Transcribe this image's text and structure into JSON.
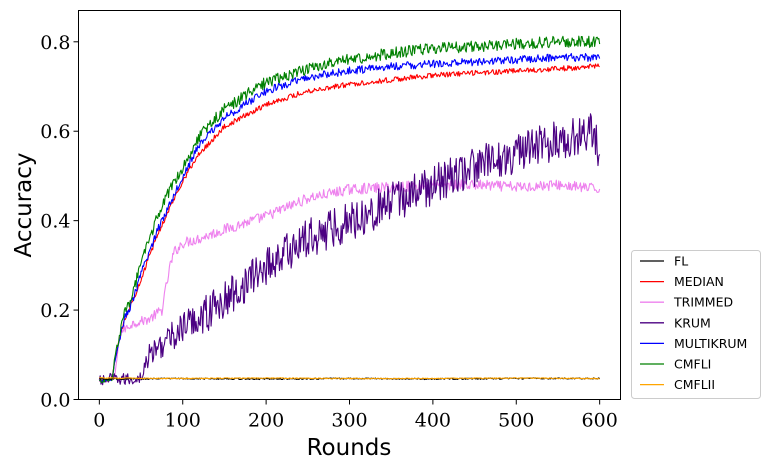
{
  "chart_data": {
    "type": "line",
    "title": "",
    "xlabel": "Rounds",
    "ylabel": "Accuracy",
    "xlim": [
      -25,
      625
    ],
    "ylim": [
      0.0,
      0.87
    ],
    "x_ticks": [
      0,
      100,
      200,
      300,
      400,
      500,
      600
    ],
    "x_tick_labels": [
      "0",
      "100",
      "200",
      "300",
      "400",
      "500",
      "600"
    ],
    "y_ticks": [
      0.0,
      0.2,
      0.4,
      0.6,
      0.8
    ],
    "y_tick_labels": [
      "0.0",
      "0.2",
      "0.4",
      "0.6",
      "0.8"
    ],
    "grid": false,
    "legend_placement": "outside-right-bottom",
    "series": [
      {
        "name": "FL",
        "color": "#000000",
        "x": [
          0,
          100,
          200,
          300,
          400,
          500,
          600
        ],
        "y": [
          0.046,
          0.047,
          0.046,
          0.047,
          0.046,
          0.047,
          0.047
        ]
      },
      {
        "name": "MEDIAN",
        "color": "#ff0000",
        "x": [
          0,
          15,
          20,
          30,
          40,
          50,
          60,
          70,
          80,
          90,
          100,
          120,
          150,
          200,
          250,
          300,
          350,
          400,
          450,
          500,
          550,
          600
        ],
        "y": [
          0.04,
          0.045,
          0.1,
          0.18,
          0.22,
          0.27,
          0.32,
          0.37,
          0.41,
          0.45,
          0.49,
          0.55,
          0.61,
          0.66,
          0.69,
          0.705,
          0.715,
          0.725,
          0.73,
          0.735,
          0.74,
          0.745
        ]
      },
      {
        "name": "TRIMMED",
        "color": "#ee82ee",
        "x": [
          0,
          18,
          25,
          40,
          60,
          75,
          80,
          85,
          90,
          100,
          120,
          150,
          200,
          250,
          300,
          350,
          400,
          450,
          500,
          550,
          600
        ],
        "y": [
          0.04,
          0.045,
          0.15,
          0.17,
          0.18,
          0.2,
          0.25,
          0.3,
          0.33,
          0.35,
          0.36,
          0.38,
          0.41,
          0.45,
          0.47,
          0.475,
          0.48,
          0.48,
          0.475,
          0.48,
          0.47
        ]
      },
      {
        "name": "KRUM",
        "color": "#4b0082",
        "x": [
          0,
          10,
          40,
          50,
          60,
          80,
          100,
          150,
          200,
          250,
          300,
          350,
          400,
          450,
          500,
          550,
          590,
          600
        ],
        "y": [
          0.04,
          0.045,
          0.045,
          0.05,
          0.1,
          0.13,
          0.16,
          0.22,
          0.3,
          0.36,
          0.4,
          0.44,
          0.48,
          0.52,
          0.55,
          0.58,
          0.6,
          0.55
        ]
      },
      {
        "name": "MULTIKRUM",
        "color": "#0000ff",
        "x": [
          0,
          15,
          20,
          30,
          40,
          50,
          60,
          70,
          80,
          90,
          100,
          120,
          150,
          200,
          250,
          300,
          350,
          400,
          450,
          500,
          550,
          600
        ],
        "y": [
          0.04,
          0.045,
          0.1,
          0.18,
          0.22,
          0.28,
          0.33,
          0.38,
          0.42,
          0.46,
          0.5,
          0.57,
          0.63,
          0.69,
          0.72,
          0.735,
          0.745,
          0.75,
          0.755,
          0.76,
          0.765,
          0.765
        ]
      },
      {
        "name": "CMFLI",
        "color": "#008000",
        "x": [
          0,
          15,
          20,
          30,
          40,
          50,
          60,
          70,
          80,
          90,
          100,
          120,
          150,
          200,
          250,
          300,
          350,
          400,
          450,
          500,
          550,
          600
        ],
        "y": [
          0.04,
          0.045,
          0.11,
          0.19,
          0.24,
          0.3,
          0.36,
          0.41,
          0.45,
          0.49,
          0.52,
          0.59,
          0.65,
          0.71,
          0.74,
          0.76,
          0.775,
          0.785,
          0.79,
          0.795,
          0.8,
          0.8
        ]
      },
      {
        "name": "CMFLII",
        "color": "#ffa500",
        "x": [
          0,
          100,
          200,
          300,
          400,
          500,
          600
        ],
        "y": [
          0.048,
          0.047,
          0.048,
          0.047,
          0.047,
          0.048,
          0.047
        ]
      }
    ]
  }
}
